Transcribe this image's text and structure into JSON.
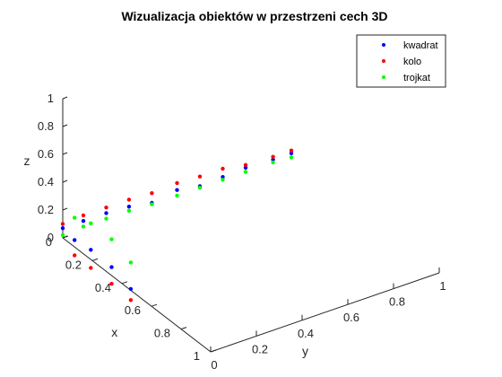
{
  "chart_data": {
    "type": "scatter",
    "projection": "3d",
    "title": "Wizualizacja obiektów w przestrzeni cech 3D",
    "xlabel": "x",
    "ylabel": "y",
    "zlabel": "z",
    "xlim": [
      0,
      1
    ],
    "ylim": [
      0,
      1
    ],
    "zlim": [
      0,
      1
    ],
    "x_ticks": [
      "0",
      "0.2",
      "0.4",
      "0.6",
      "0.8",
      "1"
    ],
    "y_ticks": [
      "0",
      "0.2",
      "0.4",
      "0.6",
      "0.8",
      "1"
    ],
    "z_ticks": [
      "0",
      "0.2",
      "0.4",
      "0.6",
      "0.8",
      "1"
    ],
    "grid": false,
    "legend_position": "top-right",
    "series": [
      {
        "name": "kwadrat",
        "color": "#0000ff",
        "points": [
          {
            "x": 0.0,
            "y": 0.0,
            "z": 0.07
          },
          {
            "x": 0.0,
            "y": 0.09,
            "z": 0.07
          },
          {
            "x": 0.0,
            "y": 0.19,
            "z": 0.07
          },
          {
            "x": 0.0,
            "y": 0.29,
            "z": 0.06
          },
          {
            "x": 0.0,
            "y": 0.39,
            "z": 0.03
          },
          {
            "x": 0.0,
            "y": 0.5,
            "z": 0.06
          },
          {
            "x": 0.0,
            "y": 0.6,
            "z": 0.03
          },
          {
            "x": 0.0,
            "y": 0.7,
            "z": 0.04
          },
          {
            "x": 0.0,
            "y": 0.8,
            "z": 0.05
          },
          {
            "x": 0.0,
            "y": 0.92,
            "z": 0.04
          },
          {
            "x": 0.0,
            "y": 1.0,
            "z": 0.04
          },
          {
            "x": 0.08,
            "y": 0.0,
            "z": 0.05
          },
          {
            "x": 0.19,
            "y": 0.0,
            "z": 0.07
          },
          {
            "x": 0.33,
            "y": 0.0,
            "z": 0.06
          },
          {
            "x": 0.46,
            "y": 0.0,
            "z": 0.01
          }
        ]
      },
      {
        "name": "kolo",
        "color": "#ff0000",
        "points": [
          {
            "x": 0.0,
            "y": 0.0,
            "z": 0.1
          },
          {
            "x": 0.0,
            "y": 0.09,
            "z": 0.11
          },
          {
            "x": 0.0,
            "y": 0.19,
            "z": 0.11
          },
          {
            "x": 0.0,
            "y": 0.29,
            "z": 0.11
          },
          {
            "x": 0.0,
            "y": 0.39,
            "z": 0.1
          },
          {
            "x": 0.0,
            "y": 0.5,
            "z": 0.11
          },
          {
            "x": 0.0,
            "y": 0.6,
            "z": 0.1
          },
          {
            "x": 0.0,
            "y": 0.7,
            "z": 0.1
          },
          {
            "x": 0.0,
            "y": 0.8,
            "z": 0.07
          },
          {
            "x": 0.0,
            "y": 0.92,
            "z": 0.06
          },
          {
            "x": 0.0,
            "y": 1.0,
            "z": 0.06
          },
          {
            "x": 0.08,
            "y": 0.0,
            "z": -0.06
          },
          {
            "x": 0.19,
            "y": 0.0,
            "z": -0.06
          },
          {
            "x": 0.33,
            "y": 0.0,
            "z": -0.06
          },
          {
            "x": 0.46,
            "y": 0.0,
            "z": -0.07
          }
        ]
      },
      {
        "name": "trojkat",
        "color": "#00ff00",
        "points": [
          {
            "x": 0.0,
            "y": 0.0,
            "z": 0.02
          },
          {
            "x": 0.0,
            "y": 0.09,
            "z": 0.03
          },
          {
            "x": 0.0,
            "y": 0.19,
            "z": 0.03
          },
          {
            "x": 0.0,
            "y": 0.29,
            "z": 0.03
          },
          {
            "x": 0.0,
            "y": 0.39,
            "z": 0.02
          },
          {
            "x": 0.0,
            "y": 0.5,
            "z": 0.02
          },
          {
            "x": 0.0,
            "y": 0.6,
            "z": 0.02
          },
          {
            "x": 0.0,
            "y": 0.7,
            "z": 0.02
          },
          {
            "x": 0.0,
            "y": 0.8,
            "z": 0.02
          },
          {
            "x": 0.0,
            "y": 0.92,
            "z": 0.02
          },
          {
            "x": 0.0,
            "y": 1.0,
            "z": 0.01
          },
          {
            "x": 0.08,
            "y": 0.0,
            "z": 0.21
          },
          {
            "x": 0.19,
            "y": 0.0,
            "z": 0.26
          },
          {
            "x": 0.33,
            "y": 0.0,
            "z": 0.26
          },
          {
            "x": 0.46,
            "y": 0.0,
            "z": 0.2
          }
        ]
      }
    ]
  }
}
